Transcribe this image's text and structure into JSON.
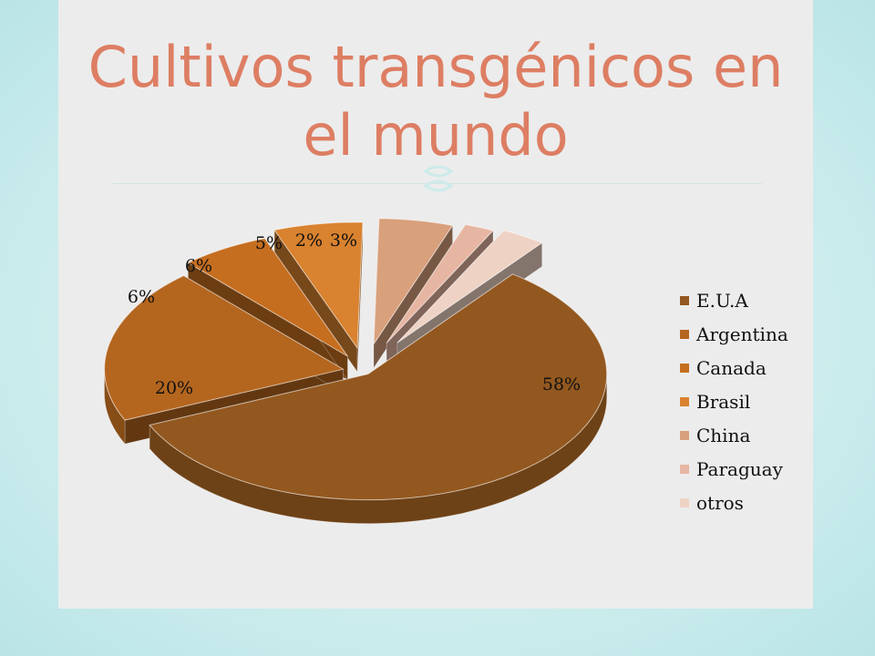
{
  "slide": {
    "title": "Cultivos transgénicos en el mundo",
    "ornament_icon": "scroll-ornament-icon"
  },
  "colors": {
    "title": "#dd7e63",
    "background_outer": "#c9ebec",
    "panel": "#ececec"
  },
  "chart_data": {
    "type": "pie",
    "style": "3d exploded",
    "title": "",
    "categories": [
      "E.U.A",
      "Argentina",
      "Canada",
      "Brasil",
      "China",
      "Paraguay",
      "otros"
    ],
    "values": [
      58,
      20,
      6,
      6,
      5,
      2,
      3
    ],
    "value_labels": [
      "58%",
      "20%",
      "6%",
      "6%",
      "5%",
      "2%",
      "3%"
    ],
    "colors": [
      "#93581f",
      "#b4661f",
      "#c56e1f",
      "#d9822f",
      "#d9a07c",
      "#e7b6a2",
      "#eed3c4"
    ],
    "legend_position": "right"
  }
}
